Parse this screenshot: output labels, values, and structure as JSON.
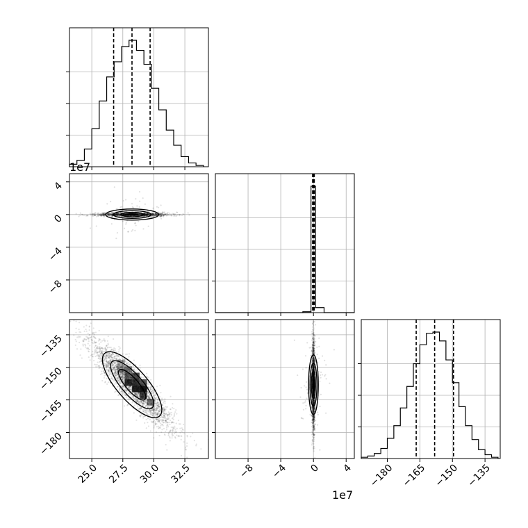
{
  "chart_data": [
    {
      "type": "histogram",
      "panel": "p1-marginal",
      "x_range": [
        23.2,
        34.4
      ],
      "quantiles": [
        26.76,
        28.24,
        29.7
      ],
      "bin_edges": [
        23.2,
        23.8,
        24.4,
        25.0,
        25.6,
        26.2,
        26.8,
        27.4,
        28.0,
        28.6,
        29.2,
        29.8,
        30.4,
        31.0,
        31.6,
        32.2,
        32.8,
        33.4,
        34.0
      ],
      "counts": [
        2,
        5,
        14,
        30,
        52,
        71,
        83,
        95,
        100,
        92,
        81,
        62,
        45,
        29,
        17,
        8,
        3,
        1
      ]
    },
    {
      "type": "scatter",
      "panel": "p2-vs-p1",
      "x_range": [
        23.2,
        34.4
      ],
      "y_range": [
        -12.0,
        5.0
      ],
      "y_scale_label": "1e7",
      "y_ticks": [
        "4",
        "0",
        "−4",
        "−8"
      ],
      "y_tick_values": [
        4,
        0,
        -4,
        -8
      ],
      "center": [
        28.25,
        0.0
      ]
    },
    {
      "type": "histogram",
      "panel": "p2-marginal",
      "x_range": [
        -12.0,
        5.0
      ],
      "quantiles": [
        -0.1,
        0.0,
        0.1
      ],
      "bin_edges": [
        -1.5,
        -0.5,
        0.5,
        1.5
      ],
      "counts": [
        2,
        100,
        3
      ]
    },
    {
      "type": "scatter",
      "panel": "p3-vs-p1",
      "x_range": [
        23.2,
        34.4
      ],
      "y_range": [
        -192.0,
        -128.0
      ],
      "y_ticks": [
        "−135",
        "−150",
        "−165",
        "−180"
      ],
      "y_tick_values": [
        -135,
        -150,
        -165,
        -180
      ],
      "center": [
        28.25,
        -158.0
      ]
    },
    {
      "type": "scatter",
      "panel": "p3-vs-p2",
      "x_range": [
        -12.0,
        5.0
      ],
      "y_range": [
        -192.0,
        -128.0
      ],
      "x_scale_label": "1e7",
      "x_ticks": [
        "−8",
        "−4",
        "0",
        "4"
      ],
      "x_tick_values": [
        -8,
        -4,
        0,
        4
      ],
      "center": [
        0.0,
        -158.0
      ]
    },
    {
      "type": "histogram",
      "panel": "p3-marginal",
      "x_range": [
        -192.0,
        -128.0
      ],
      "x_ticks": [
        "−180",
        "−165",
        "−150",
        "−135"
      ],
      "x_tick_values": [
        -180,
        -165,
        -150,
        -135
      ],
      "quantiles": [
        -166.7,
        -158.2,
        -149.5
      ],
      "bin_edges": [
        -192,
        -189,
        -186,
        -183,
        -180,
        -177,
        -174,
        -171,
        -168,
        -165,
        -162,
        -159,
        -156,
        -153,
        -150,
        -147,
        -144,
        -141,
        -138,
        -135,
        -132,
        -129
      ],
      "counts": [
        1,
        2,
        4,
        8,
        16,
        26,
        40,
        57,
        75,
        90,
        99,
        100,
        93,
        78,
        60,
        41,
        26,
        15,
        7,
        3,
        1
      ]
    }
  ],
  "bottom_axis_p1": {
    "ticks": [
      "25.0",
      "27.5",
      "30.0",
      "32.5"
    ],
    "tick_values": [
      25.0,
      27.5,
      30.0,
      32.5
    ]
  }
}
